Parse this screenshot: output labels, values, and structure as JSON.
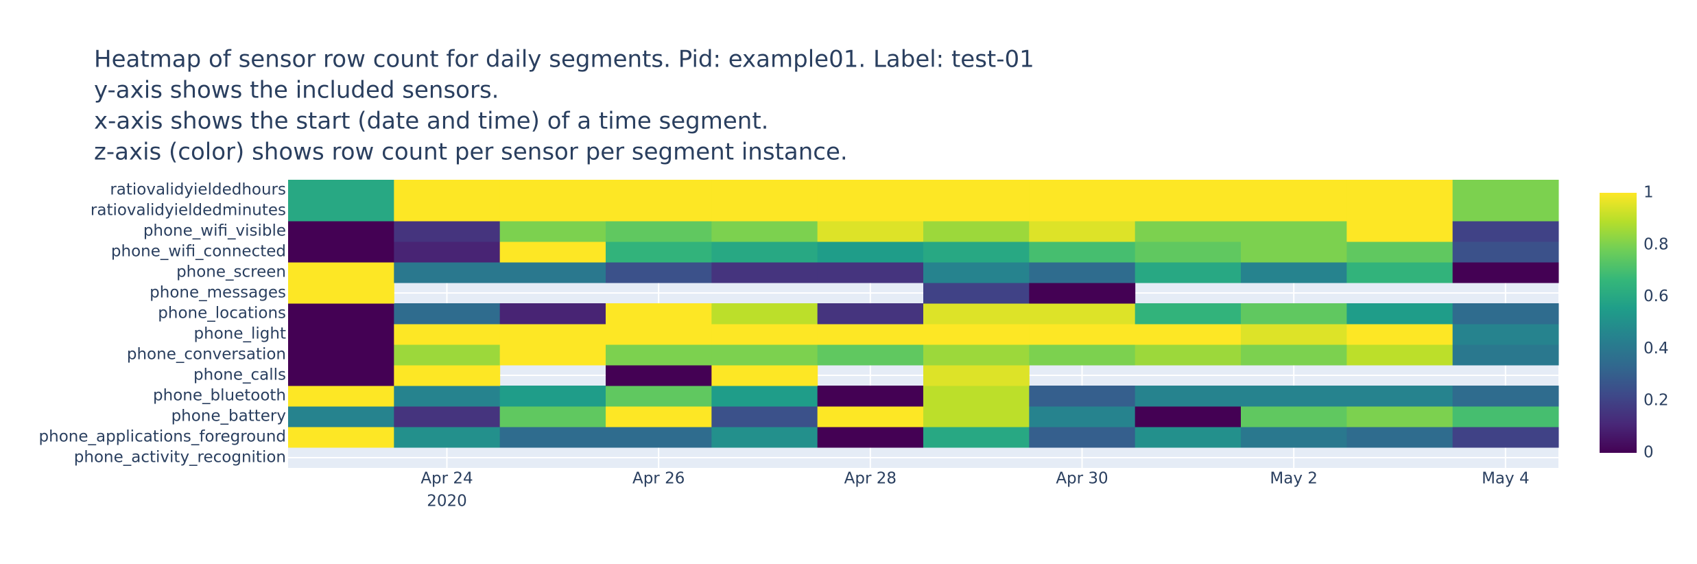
{
  "chart_data": {
    "type": "heatmap",
    "title": [
      "Heatmap of sensor row count for daily segments. Pid: example01. Label: test-01",
      "y-axis shows the included sensors.",
      "x-axis shows the start (date and time) of a time segment.",
      "z-axis (color) shows row count per sensor per segment instance."
    ],
    "x": [
      "2020-04-23",
      "2020-04-24",
      "2020-04-25",
      "2020-04-26",
      "2020-04-27",
      "2020-04-28",
      "2020-04-29",
      "2020-04-30",
      "2020-05-01",
      "2020-05-02",
      "2020-05-03",
      "2020-05-04"
    ],
    "y": [
      "phone_activity_recognition",
      "phone_applications_foreground",
      "phone_battery",
      "phone_bluetooth",
      "phone_calls",
      "phone_conversation",
      "phone_light",
      "phone_locations",
      "phone_messages",
      "phone_screen",
      "phone_wifi_connected",
      "phone_wifi_visible",
      "ratiovalidyieldedminutes",
      "ratiovalidyieldedhours"
    ],
    "z": [
      [
        null,
        null,
        null,
        null,
        null,
        null,
        null,
        null,
        null,
        null,
        null,
        null
      ],
      [
        1,
        0.5,
        0.35,
        0.35,
        0.5,
        0,
        0.6,
        0.3,
        0.5,
        0.4,
        0.35,
        0.2
      ],
      [
        0.45,
        0.15,
        0.75,
        1,
        0.25,
        1,
        0.9,
        0.45,
        0,
        0.75,
        0.8,
        0.7
      ],
      [
        1,
        0.45,
        0.55,
        0.75,
        0.55,
        0,
        0.9,
        0.3,
        0.45,
        0.45,
        0.45,
        0.35
      ],
      [
        0,
        1,
        null,
        0,
        1,
        null,
        0.95,
        null,
        null,
        null,
        null,
        null
      ],
      [
        0,
        0.85,
        1,
        0.8,
        0.8,
        0.75,
        0.85,
        0.8,
        0.85,
        0.8,
        0.9,
        0.4
      ],
      [
        0,
        1,
        1,
        1,
        1,
        1,
        1,
        1,
        1,
        0.95,
        1,
        0.45
      ],
      [
        0,
        0.35,
        0.1,
        1,
        0.9,
        0.15,
        0.95,
        0.95,
        0.65,
        0.75,
        0.55,
        0.35
      ],
      [
        1,
        null,
        null,
        null,
        null,
        null,
        0.2,
        0,
        null,
        null,
        null,
        null
      ],
      [
        1,
        0.4,
        0.4,
        0.25,
        0.15,
        0.15,
        0.45,
        0.35,
        0.6,
        0.45,
        0.65,
        0
      ],
      [
        0,
        0.1,
        1,
        0.65,
        0.6,
        0.55,
        0.6,
        0.7,
        0.75,
        0.8,
        0.75,
        0.25
      ],
      [
        0,
        0.15,
        0.8,
        0.75,
        0.8,
        0.95,
        0.85,
        0.95,
        0.8,
        0.8,
        1,
        0.2
      ],
      [
        0.6,
        1,
        1,
        1,
        1,
        1,
        1,
        1,
        1,
        1,
        1,
        0.8
      ],
      [
        0.6,
        1,
        1,
        1,
        1,
        1,
        1,
        1,
        1,
        1,
        1,
        0.8
      ]
    ],
    "xlim": [
      "2020-04-22 12:00",
      "2020-05-04 12:00"
    ],
    "xticks": [
      {
        "value": "2020-04-24",
        "label": "Apr 24"
      },
      {
        "value": "2020-04-26",
        "label": "Apr 26"
      },
      {
        "value": "2020-04-28",
        "label": "Apr 28"
      },
      {
        "value": "2020-04-30",
        "label": "Apr 30"
      },
      {
        "value": "2020-05-02",
        "label": "May 2"
      },
      {
        "value": "2020-05-04",
        "label": "May 4"
      }
    ],
    "x_year_label": "2020",
    "zlim": [
      0,
      1
    ],
    "zticks": [
      0,
      0.2,
      0.4,
      0.6,
      0.8,
      1
    ],
    "colorscale": [
      "#440154",
      "#482878",
      "#3e4989",
      "#31688e",
      "#26828e",
      "#1f9e89",
      "#35b779",
      "#6ece58",
      "#b5de2b",
      "#fde725"
    ],
    "grid": true
  }
}
